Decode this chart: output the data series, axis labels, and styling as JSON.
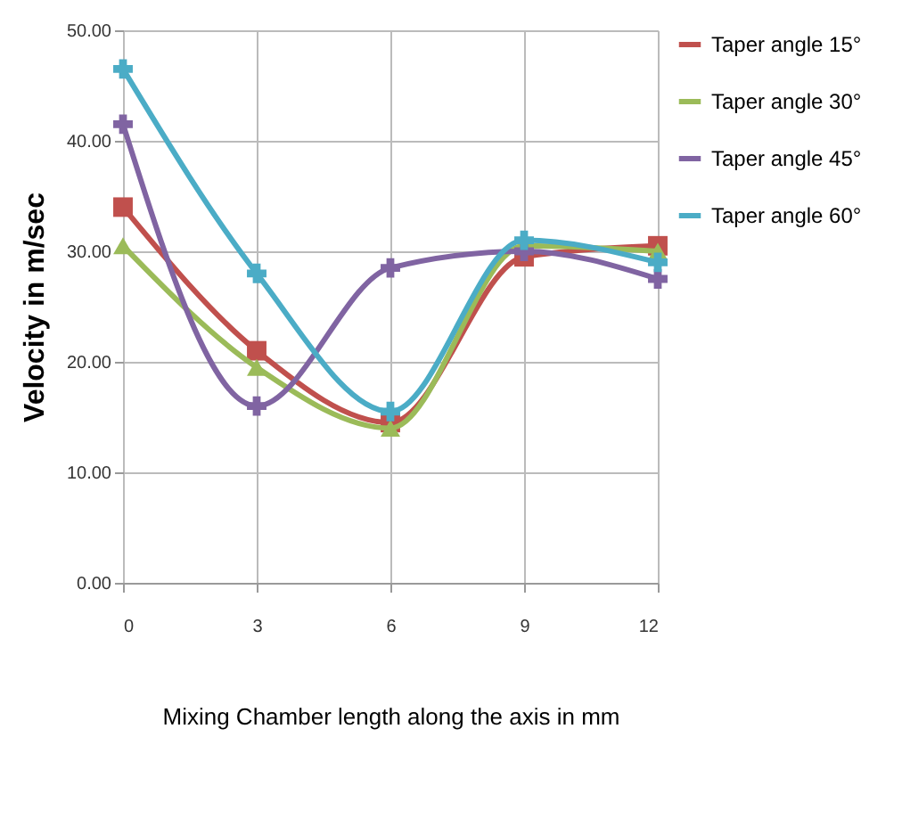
{
  "chart_data": {
    "type": "line",
    "xlabel": "Mixing Chamber length along the axis in mm",
    "ylabel": "Velocity in m/sec",
    "x": [
      0,
      3,
      6,
      9,
      12
    ],
    "series": [
      {
        "name": "Taper angle 15°",
        "color": "#c0504d",
        "marker": "square",
        "values": [
          34,
          21,
          14.5,
          29.5,
          30.5
        ]
      },
      {
        "name": "Taper angle 30°",
        "color": "#9bbb59",
        "marker": "triangle",
        "values": [
          30.5,
          19.5,
          14,
          30.5,
          30
        ]
      },
      {
        "name": "Taper angle 45°",
        "color": "#8064a2",
        "marker": "cross",
        "values": [
          41.5,
          16,
          28.5,
          30,
          27.5
        ]
      },
      {
        "name": "Taper angle 60°",
        "color": "#4bacc6",
        "marker": "cross",
        "values": [
          46.5,
          28,
          15.5,
          31,
          29
        ]
      }
    ],
    "xlim": [
      0,
      12
    ],
    "xticks": [
      0,
      3,
      6,
      9,
      12
    ],
    "ylim": [
      0,
      50
    ],
    "yticks": [
      {
        "value": 0,
        "label": "0.00"
      },
      {
        "value": 10,
        "label": "10.00"
      },
      {
        "value": 20,
        "label": "20.00"
      },
      {
        "value": 30,
        "label": "30.00"
      },
      {
        "value": 40,
        "label": "40.00"
      },
      {
        "value": 50,
        "label": "50.00"
      }
    ],
    "grid": true,
    "legend": "right",
    "line_style": "solid"
  }
}
